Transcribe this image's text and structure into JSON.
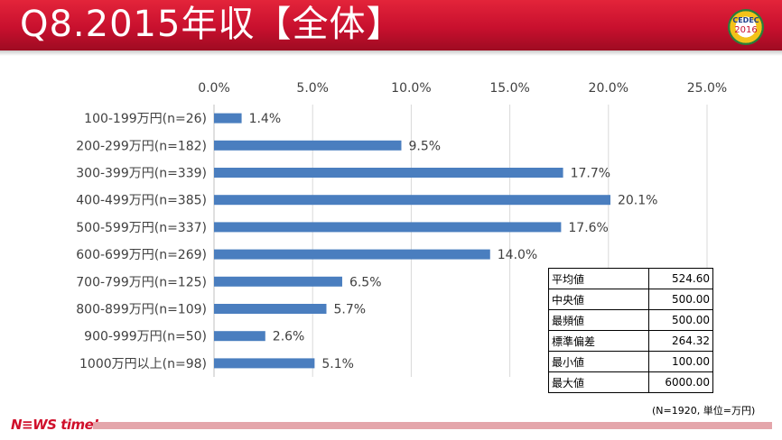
{
  "header": {
    "title": "Q8.2015年収【全体】",
    "logo_text_top": "CEDEC",
    "logo_text_bottom": "2016"
  },
  "chart_data": {
    "type": "bar",
    "orientation": "horizontal",
    "categories": [
      "100-199万円(n=26)",
      "200-299万円(n=182)",
      "300-399万円(n=339)",
      "400-499万円(n=385)",
      "500-599万円(n=337)",
      "600-699万円(n=269)",
      "700-799万円(n=125)",
      "800-899万円(n=109)",
      "900-999万円(n=50)",
      "1000万円以上(n=98)"
    ],
    "values": [
      1.4,
      9.5,
      17.7,
      20.1,
      17.6,
      14.0,
      6.5,
      5.7,
      2.6,
      5.1
    ],
    "value_labels": [
      "1.4%",
      "9.5%",
      "17.7%",
      "20.1%",
      "17.6%",
      "14.0%",
      "6.5%",
      "5.7%",
      "2.6%",
      "5.1%"
    ],
    "x_ticks": [
      "0.0%",
      "5.0%",
      "10.0%",
      "15.0%",
      "20.0%",
      "25.0%"
    ],
    "xlim": [
      0,
      25
    ],
    "axis_position": "top",
    "grid": true,
    "bar_color": "#4a7ebf"
  },
  "stats": [
    {
      "label": "平均値",
      "value": "524.60"
    },
    {
      "label": "中央値",
      "value": "500.00"
    },
    {
      "label": "最頻値",
      "value": "500.00"
    },
    {
      "label": "標準偏差",
      "value": "264.32"
    },
    {
      "label": "最小値",
      "value": "100.00"
    },
    {
      "label": "最大値",
      "value": "6000.00"
    }
  ],
  "note": "(N=1920, 単位=万円)",
  "footer": {
    "logo_text": "N≡WS time!",
    "bar_color": "#e4a6ab"
  }
}
